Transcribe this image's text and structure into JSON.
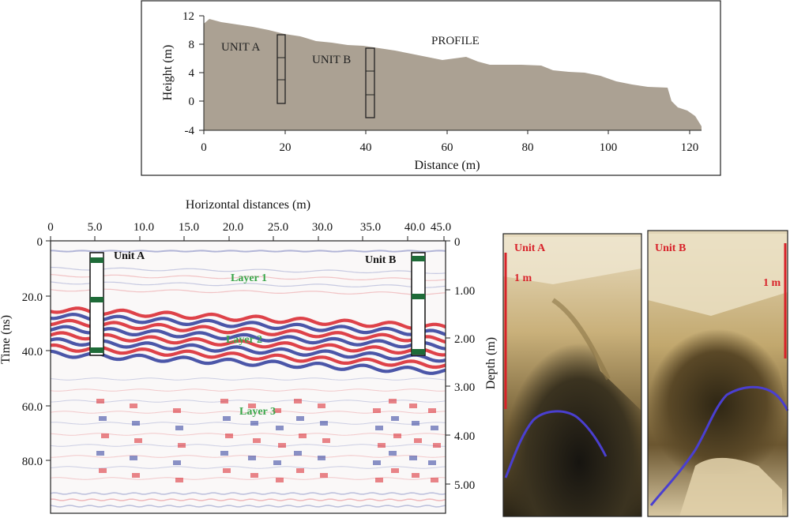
{
  "profile": {
    "xlabel": "Distance (m)",
    "ylabel": "Height (m)",
    "x_ticks": [
      "0",
      "20",
      "40",
      "60",
      "80",
      "100",
      "120"
    ],
    "y_ticks": [
      "12",
      "8",
      "4",
      "0",
      "-4"
    ],
    "unit_a_label": "UNIT A",
    "unit_b_label": "UNIT B",
    "profile_label": "PROFILE",
    "terrain_color": "#aba193"
  },
  "gpr": {
    "top_title": "Horizontal distances (m)",
    "x_ticks": [
      "0",
      "5.0",
      "10.0",
      "15.0",
      "20.0",
      "25.0",
      "30.0",
      "35.0",
      "40.0",
      "45.0"
    ],
    "time_ticks": [
      "0",
      "20.0",
      "40.0",
      "60.0",
      "80.0"
    ],
    "depth_ticks": [
      "0",
      "1.00",
      "2.00",
      "3.00",
      "4.00",
      "5.00"
    ],
    "time_label": "Time (ns)",
    "depth_label": "Depth (m)",
    "unit_a_label": "Unit A",
    "unit_b_label": "Unit B",
    "layer1": "Layer 1",
    "layer2": "Layer 2",
    "layer3": "Layer 3",
    "layer_color": "#3aa64a",
    "positive_color": "#d8222a",
    "negative_color": "#2b3a9a"
  },
  "photos": {
    "unit_a_label": "Unit A",
    "unit_b_label": "Unit B",
    "scale_a": "1 m",
    "scale_b": "1 m",
    "scale_color": "#d8222a",
    "outline_color": "#4a3fd0"
  }
}
